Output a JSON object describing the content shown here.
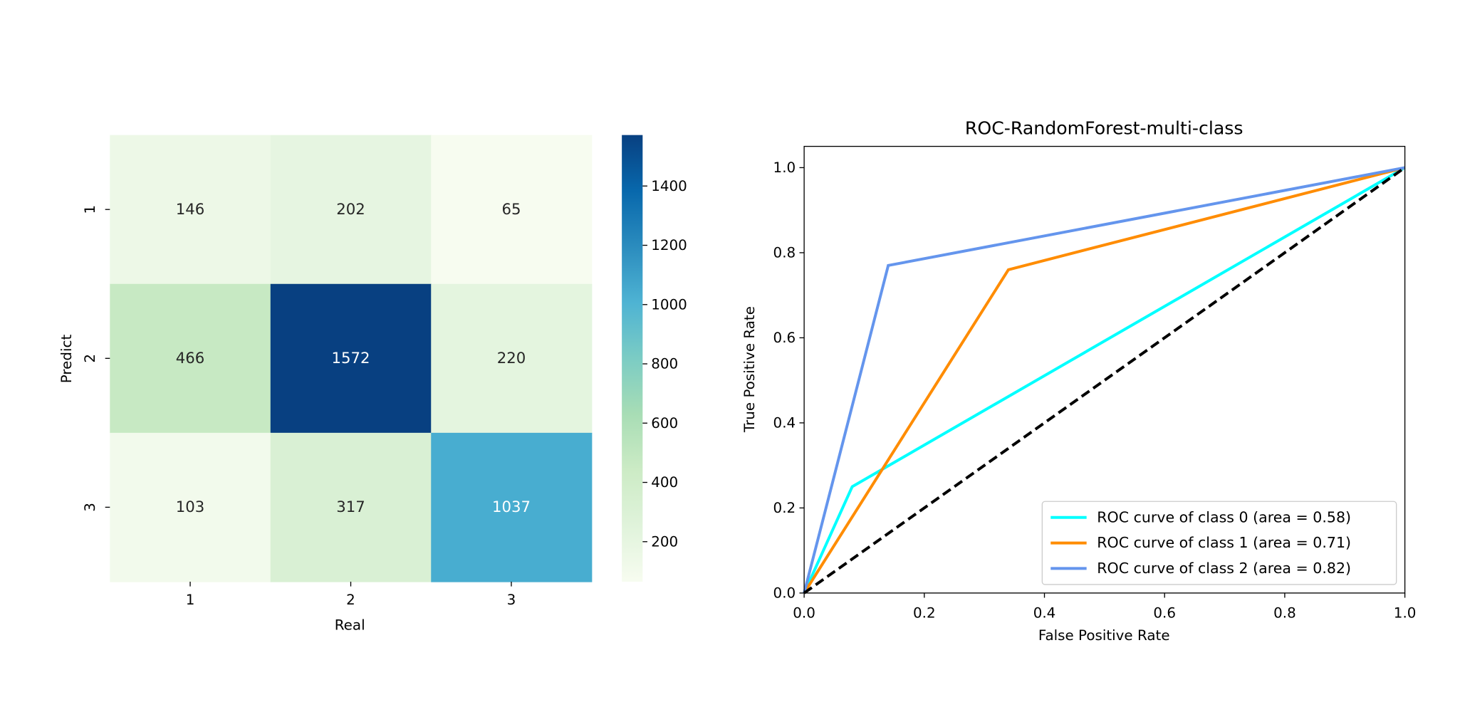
{
  "chart_data": [
    {
      "type": "heatmap",
      "xlabel": "Real",
      "ylabel": "Predict",
      "x_categories": [
        "1",
        "2",
        "3"
      ],
      "y_categories": [
        "1",
        "2",
        "3"
      ],
      "values": [
        [
          146,
          202,
          65
        ],
        [
          466,
          1572,
          220
        ],
        [
          103,
          317,
          1037
        ]
      ],
      "colormap": "GnBu",
      "colorbar_range": [
        65,
        1572
      ],
      "colorbar_ticks": [
        200,
        400,
        600,
        800,
        1000,
        1200,
        1400
      ]
    },
    {
      "type": "line",
      "title": "ROC-RandomForest-multi-class",
      "xlabel": "False Positive Rate",
      "ylabel": "True Positive Rate",
      "xlim": [
        0.0,
        1.0
      ],
      "ylim": [
        0.0,
        1.05
      ],
      "xticks": [
        "0.0",
        "0.2",
        "0.4",
        "0.6",
        "0.8",
        "1.0"
      ],
      "yticks": [
        "0.0",
        "0.2",
        "0.4",
        "0.6",
        "0.8",
        "1.0"
      ],
      "grid": false,
      "legend_position": "lower-right",
      "series": [
        {
          "name": "ROC curve of class 0 (area = 0.58)",
          "color": "#00ffff",
          "x": [
            0.0,
            0.08,
            1.0
          ],
          "y": [
            0.0,
            0.25,
            1.0
          ]
        },
        {
          "name": "ROC curve of class 1 (area = 0.71)",
          "color": "#ff8c00",
          "x": [
            0.0,
            0.34,
            1.0
          ],
          "y": [
            0.0,
            0.76,
            1.0
          ]
        },
        {
          "name": "ROC curve of class 2 (area = 0.82)",
          "color": "#6495ed",
          "x": [
            0.0,
            0.14,
            1.0
          ],
          "y": [
            0.0,
            0.77,
            1.0
          ]
        }
      ],
      "reference_line": {
        "color": "#000000",
        "style": "dashed",
        "x": [
          0.0,
          1.0
        ],
        "y": [
          0.0,
          1.0
        ]
      }
    }
  ]
}
